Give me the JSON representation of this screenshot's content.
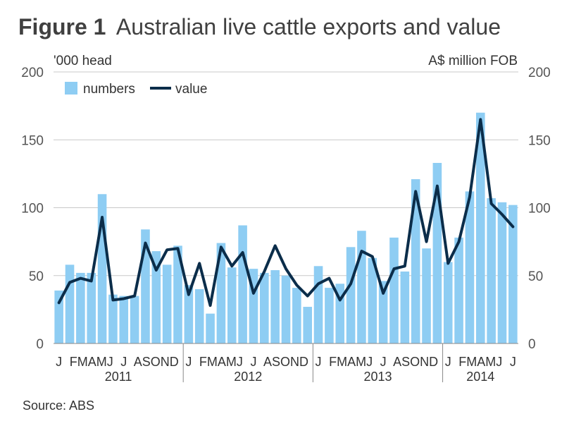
{
  "page": {
    "title_bold": "Figure 1",
    "title_rest": "Australian live cattle exports and value",
    "source": "Source: ABS"
  },
  "chart_data": {
    "type": "bar",
    "title": "Figure 1 Australian live cattle exports and value",
    "ylabel_left": "'000 head",
    "ylabel_right": "A$ million FOB",
    "ylim": [
      0,
      200
    ],
    "yticks": [
      0,
      50,
      100,
      150,
      200
    ],
    "grid": true,
    "legend_position": "top-left",
    "colors": {
      "bars": "#8ecdf3",
      "line": "#0b2d4a"
    },
    "month_labels": [
      "J",
      "F",
      "M",
      "A",
      "M",
      "J",
      "J",
      "A",
      "S",
      "O",
      "N",
      "D",
      "J",
      "F",
      "M",
      "A",
      "M",
      "J",
      "J",
      "A",
      "S",
      "O",
      "N",
      "D",
      "J",
      "F",
      "M",
      "A",
      "M",
      "J",
      "J",
      "A",
      "S",
      "O",
      "N",
      "D",
      "J",
      "F",
      "M",
      "A",
      "M",
      "J",
      "J"
    ],
    "month_axis_text": [
      "J",
      "FMAMJ",
      "J",
      "ASOND",
      "J",
      "FMAMJ",
      "J",
      "ASOND",
      "J",
      "FMAMJ",
      "J",
      "ASOND",
      "J",
      "FMAMJ",
      "J"
    ],
    "years": [
      "2011",
      "2012",
      "2013",
      "2014"
    ],
    "series": [
      {
        "name": "numbers",
        "type": "bar",
        "axis": "left",
        "values": [
          39,
          58,
          52,
          52,
          110,
          36,
          35,
          35,
          84,
          68,
          58,
          72,
          43,
          40,
          22,
          74,
          56,
          87,
          55,
          52,
          54,
          50,
          41,
          27,
          57,
          41,
          44,
          71,
          83,
          63,
          46,
          78,
          53,
          121,
          70,
          133,
          60,
          78,
          112,
          170,
          107,
          104,
          102
        ]
      },
      {
        "name": "value",
        "type": "line",
        "axis": "right",
        "values": [
          30,
          45,
          48,
          46,
          93,
          32,
          33,
          35,
          74,
          54,
          69,
          70,
          36,
          59,
          28,
          71,
          57,
          67,
          37,
          53,
          72,
          55,
          43,
          35,
          44,
          48,
          32,
          44,
          68,
          64,
          37,
          55,
          57,
          112,
          75,
          116,
          59,
          75,
          108,
          165,
          103,
          95,
          86
        ]
      }
    ]
  }
}
